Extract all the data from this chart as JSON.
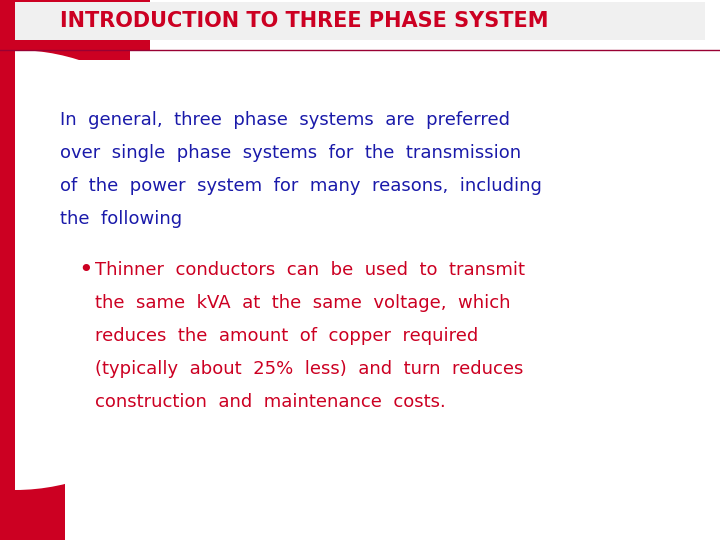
{
  "bg_color": "#ffffff",
  "red_color": "#CC0022",
  "blue_color": "#1a1aaa",
  "dark_red": "#990033",
  "title": "INTRODUCTION TO THREE PHASE SYSTEM",
  "title_color": "#CC0022",
  "title_fontsize": 15,
  "body_text": "In  general,  three  phase  systems  are  preferred\nover  single  phase  systems  for  the  transmission\nof  the  power  system  for  many  reasons,  including\nthe  following",
  "body_color": "#1a1aaa",
  "body_fontsize": 13,
  "bullet_text": "Thinner  conductors  can  be  used  to  transmit\n    the  same  kVA  at  the  same  voltage,  which\n    reduces  the  amount  of  copper  required\n    (typically  about  25%  less)  and  turn  reduces\n    construction  and  maintenance  costs.",
  "bullet_color": "#CC0022",
  "bullet_fontsize": 13
}
